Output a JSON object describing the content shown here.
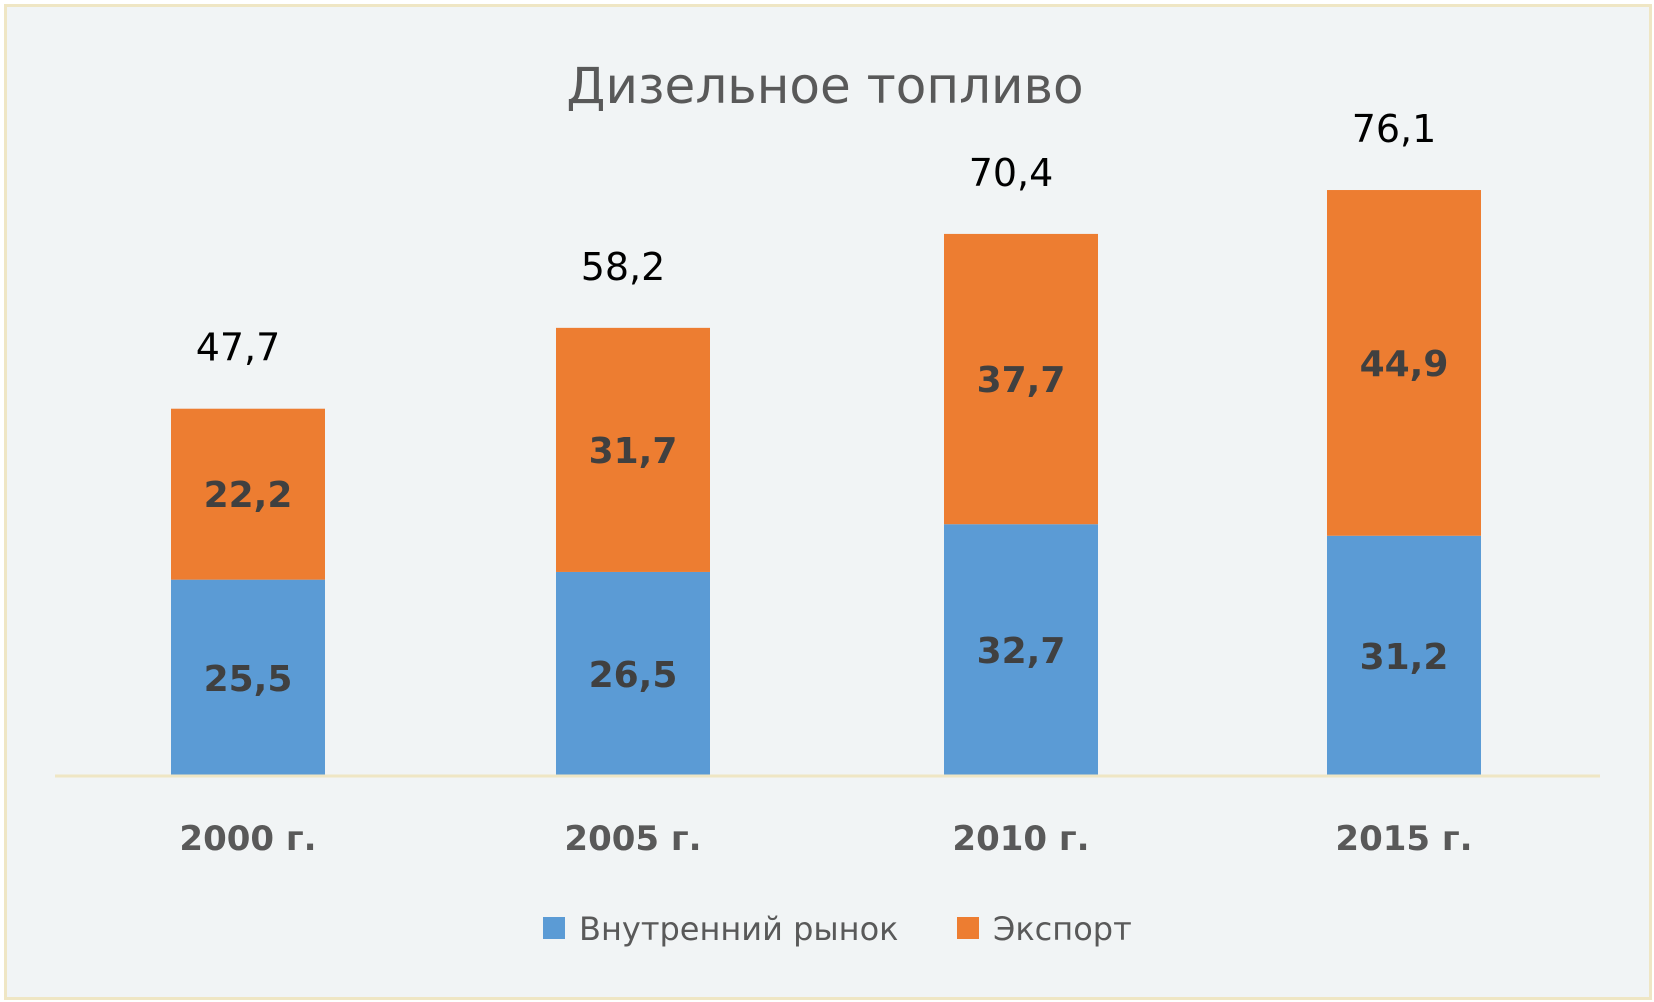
{
  "chart_data": {
    "type": "bar",
    "stacked": true,
    "title": "Дизельное топливо",
    "xlabel": "",
    "ylabel": "",
    "categories": [
      "2000 г.",
      "2005 г.",
      "2010 г.",
      "2015 г."
    ],
    "series": [
      {
        "name": "Внутренний рынок",
        "color": "#5b9bd5",
        "values": [
          25.5,
          26.5,
          32.7,
          31.2
        ],
        "labels": [
          "25,5",
          "26,5",
          "32,7",
          "31,2"
        ]
      },
      {
        "name": "Экспорт",
        "color": "#ed7d31",
        "values": [
          22.2,
          31.7,
          37.7,
          44.9
        ],
        "labels": [
          "22,2",
          "31,7",
          "37,7",
          "44,9"
        ]
      }
    ],
    "totals": [
      47.7,
      58.2,
      70.4,
      76.1
    ],
    "total_labels": [
      "47,7",
      "58,2",
      "70,4",
      "76,1"
    ],
    "ylim": [
      0,
      80
    ],
    "grid": false,
    "legend": "bottom",
    "axis_color": "#efe6c4"
  }
}
